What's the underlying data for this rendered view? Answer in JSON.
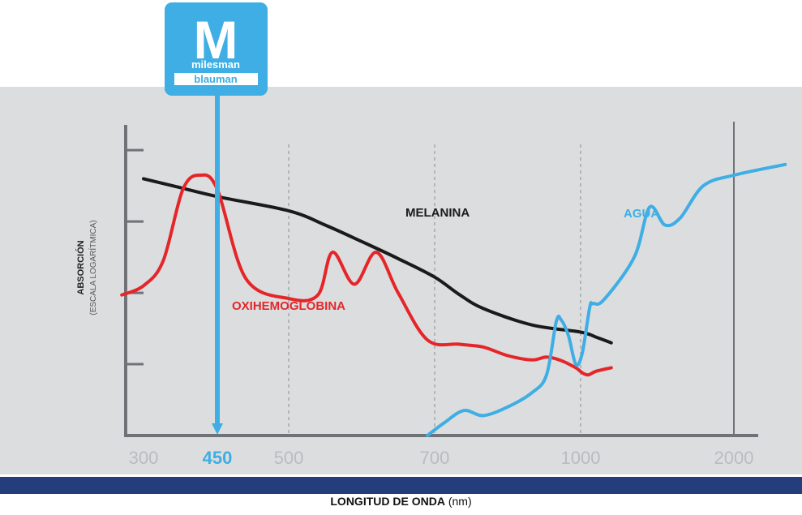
{
  "brand": {
    "letter": "M",
    "line1": "milesman",
    "line2": "blauman",
    "color": "#3eaee4"
  },
  "colors": {
    "panel_bg": "#dcdddf",
    "axis": "#6f7276",
    "melanina": "#1a1a1a",
    "oxihemoglobina": "#e52629",
    "agua": "#3eaee4",
    "highlight": "#3eaee4",
    "bottom_bar": "#243d7c"
  },
  "chart_data": {
    "type": "line",
    "title": "",
    "xlabel": "LONGITUD DE ONDA",
    "xlabel_unit": "(nm)",
    "ylabel": "ABSORCIÓN",
    "ylabel_sub": "(ESCALA LOGARÍTMICA)",
    "x_ticks": [
      "300",
      "450",
      "500",
      "700",
      "1000",
      "2000"
    ],
    "x_tick_values": [
      300,
      450,
      500,
      700,
      1000,
      2000
    ],
    "highlight_x": 450,
    "dashed_gridlines_x": [
      500,
      700,
      1000
    ],
    "solid_gridline_x": 2000,
    "y_ticks": [
      1,
      2,
      3,
      4
    ],
    "ylim": [
      0,
      4.4
    ],
    "y_scale": "log",
    "grid": false,
    "series": [
      {
        "name": "MELANINA",
        "x": [
          300,
          360,
          450,
          500,
          550,
          600,
          650,
          700,
          750,
          800,
          900,
          1000,
          1100,
          1200
        ],
        "y": [
          3.6,
          3.5,
          3.35,
          3.15,
          2.95,
          2.72,
          2.48,
          2.22,
          1.98,
          1.78,
          1.55,
          1.45,
          1.38,
          1.3
        ]
      },
      {
        "name": "OXIHEMOGLOBINA",
        "x": [
          260,
          300,
          340,
          380,
          415,
          450,
          470,
          500,
          540,
          560,
          590,
          620,
          650,
          690,
          750,
          800,
          850,
          900,
          930,
          960,
          990,
          1010,
          1050,
          1100,
          1200
        ],
        "y": [
          1.97,
          2.1,
          2.45,
          3.45,
          3.65,
          3.45,
          2.2,
          1.92,
          1.97,
          2.57,
          2.12,
          2.57,
          2.0,
          1.34,
          1.28,
          1.24,
          1.12,
          1.06,
          1.1,
          1.05,
          0.95,
          0.88,
          0.85,
          0.9,
          0.95
        ]
      },
      {
        "name": "AGUA",
        "x": [
          690,
          720,
          760,
          800,
          850,
          900,
          930,
          950,
          960,
          975,
          990,
          1010,
          1060,
          1080,
          1150,
          1350,
          1450,
          1550,
          1650,
          1800,
          2000,
          2200
        ],
        "y": [
          0.0,
          0.18,
          0.35,
          0.28,
          0.4,
          0.6,
          0.85,
          1.6,
          1.62,
          1.4,
          1.0,
          1.15,
          1.8,
          1.85,
          1.9,
          2.5,
          3.2,
          2.95,
          3.05,
          3.5,
          3.65,
          3.8
        ]
      }
    ],
    "annotations": [
      {
        "text": "MELANINA"
      },
      {
        "text": "OXIHEMOGLOBINA"
      },
      {
        "text": "AGUA"
      }
    ]
  }
}
